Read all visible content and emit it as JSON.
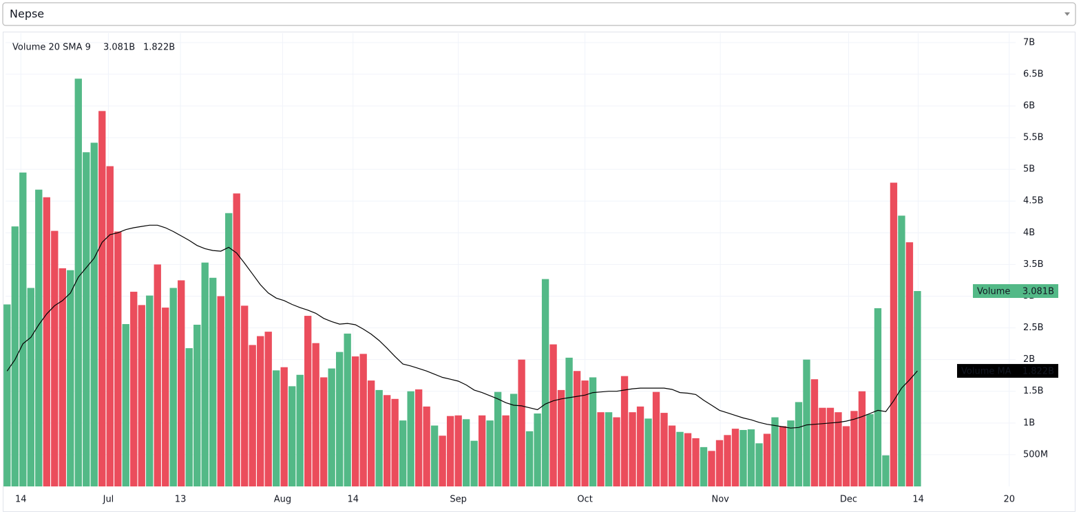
{
  "selector": {
    "value": "Nepse"
  },
  "chart_data": {
    "type": "bar",
    "legend_title": "Volume 20 SMA 9",
    "xlim": [
      -0.2,
      127.4
    ],
    "xticks": [
      {
        "value": 1.74,
        "label": "14"
      },
      {
        "value": 12.8,
        "label": "Jul"
      },
      {
        "value": 21.9,
        "label": "13"
      },
      {
        "value": 34.8,
        "label": "Aug"
      },
      {
        "value": 43.7,
        "label": "14"
      },
      {
        "value": 57,
        "label": "Sep"
      },
      {
        "value": 73,
        "label": "Oct"
      },
      {
        "value": 90.1,
        "label": "Nov"
      },
      {
        "value": 106.3,
        "label": "Dec"
      },
      {
        "value": 115.1,
        "label": "14"
      },
      {
        "value": 126.6,
        "label": "20"
      }
    ],
    "ylim": [
      0,
      7.15
    ],
    "yticks": [
      {
        "value": 0.5,
        "label": "500M"
      },
      {
        "value": 1,
        "label": "1B"
      },
      {
        "value": 1.5,
        "label": "1.5B"
      },
      {
        "value": 2,
        "label": "2B"
      },
      {
        "value": 2.5,
        "label": "2.5B"
      },
      {
        "value": 3,
        "label": "3B"
      },
      {
        "value": 3.5,
        "label": "3.5B"
      },
      {
        "value": 4,
        "label": "4B"
      },
      {
        "value": 4.5,
        "label": "4.5B"
      },
      {
        "value": 5,
        "label": "5B"
      },
      {
        "value": 5.5,
        "label": "5.5B"
      },
      {
        "value": 6,
        "label": "6B"
      },
      {
        "value": 6.5,
        "label": "6.5B"
      },
      {
        "value": 7,
        "label": "7B"
      }
    ],
    "grid": true,
    "series": [
      {
        "name": "Volume",
        "color": "#53b987",
        "value_label": "3.081B",
        "values": [
          2.87,
          4.1,
          4.95,
          3.13,
          4.68,
          4.56,
          4.03,
          3.44,
          3.41,
          6.43,
          5.27,
          5.42,
          5.92,
          5.05,
          4.02,
          2.56,
          3.07,
          2.86,
          3.01,
          3.5,
          2.82,
          3.13,
          3.25,
          2.18,
          2.55,
          3.53,
          3.29,
          3.0,
          4.31,
          4.62,
          2.85,
          2.23,
          2.37,
          2.44,
          1.83,
          1.88,
          1.58,
          1.76,
          2.69,
          2.26,
          1.72,
          1.86,
          2.12,
          2.41,
          2.05,
          2.09,
          1.67,
          1.52,
          1.44,
          1.38,
          1.04,
          1.5,
          1.53,
          1.26,
          0.96,
          0.8,
          1.11,
          1.12,
          1.06,
          0.72,
          1.12,
          1.04,
          1.49,
          1.12,
          1.46,
          2.0,
          0.87,
          1.15,
          3.27,
          2.24,
          1.52,
          2.03,
          1.82,
          1.67,
          1.72,
          1.17,
          1.17,
          1.09,
          1.74,
          1.17,
          1.26,
          1.07,
          1.49,
          1.16,
          0.96,
          0.86,
          0.84,
          0.76,
          0.62,
          0.56,
          0.73,
          0.81,
          0.91,
          0.89,
          0.9,
          0.68,
          0.83,
          1.09,
          0.95,
          1.04,
          1.33,
          2.0,
          1.69,
          1.24,
          1.24,
          1.17,
          0.95,
          1.19,
          1.5,
          1.14,
          2.81,
          0.49,
          4.79,
          4.27,
          3.85,
          3.081
        ],
        "colors": [
          "#53b987",
          "#53b987",
          "#53b987",
          "#53b987",
          "#53b987",
          "#eb4d5c",
          "#eb4d5c",
          "#eb4d5c",
          "#53b987",
          "#53b987",
          "#53b987",
          "#53b987",
          "#eb4d5c",
          "#eb4d5c",
          "#eb4d5c",
          "#53b987",
          "#eb4d5c",
          "#eb4d5c",
          "#53b987",
          "#eb4d5c",
          "#eb4d5c",
          "#53b987",
          "#eb4d5c",
          "#53b987",
          "#53b987",
          "#53b987",
          "#53b987",
          "#eb4d5c",
          "#53b987",
          "#eb4d5c",
          "#eb4d5c",
          "#eb4d5c",
          "#eb4d5c",
          "#eb4d5c",
          "#53b987",
          "#eb4d5c",
          "#53b987",
          "#53b987",
          "#eb4d5c",
          "#eb4d5c",
          "#eb4d5c",
          "#53b987",
          "#53b987",
          "#53b987",
          "#eb4d5c",
          "#eb4d5c",
          "#eb4d5c",
          "#53b987",
          "#eb4d5c",
          "#eb4d5c",
          "#53b987",
          "#53b987",
          "#eb4d5c",
          "#eb4d5c",
          "#53b987",
          "#eb4d5c",
          "#eb4d5c",
          "#eb4d5c",
          "#53b987",
          "#53b987",
          "#eb4d5c",
          "#53b987",
          "#53b987",
          "#eb4d5c",
          "#53b987",
          "#eb4d5c",
          "#53b987",
          "#53b987",
          "#53b987",
          "#eb4d5c",
          "#eb4d5c",
          "#53b987",
          "#eb4d5c",
          "#eb4d5c",
          "#53b987",
          "#eb4d5c",
          "#53b987",
          "#eb4d5c",
          "#eb4d5c",
          "#eb4d5c",
          "#eb4d5c",
          "#53b987",
          "#eb4d5c",
          "#eb4d5c",
          "#eb4d5c",
          "#53b987",
          "#eb4d5c",
          "#eb4d5c",
          "#53b987",
          "#eb4d5c",
          "#eb4d5c",
          "#eb4d5c",
          "#eb4d5c",
          "#53b987",
          "#53b987",
          "#53b987",
          "#eb4d5c",
          "#53b987",
          "#eb4d5c",
          "#53b987",
          "#53b987",
          "#53b987",
          "#eb4d5c",
          "#eb4d5c",
          "#eb4d5c",
          "#eb4d5c",
          "#eb4d5c",
          "#eb4d5c",
          "#eb4d5c",
          "#53b987",
          "#53b987",
          "#53b987",
          "#eb4d5c",
          "#53b987",
          "#eb4d5c",
          "#53b987"
        ]
      },
      {
        "name": "Volume MA",
        "color": "#000000",
        "value_label": "1.822B",
        "values": [
          1.82,
          2.0,
          2.25,
          2.35,
          2.55,
          2.72,
          2.85,
          2.93,
          3.05,
          3.3,
          3.45,
          3.6,
          3.85,
          3.97,
          4.0,
          4.05,
          4.08,
          4.1,
          4.12,
          4.12,
          4.08,
          4.02,
          3.95,
          3.88,
          3.8,
          3.75,
          3.72,
          3.71,
          3.77,
          3.68,
          3.52,
          3.35,
          3.18,
          3.05,
          2.97,
          2.93,
          2.87,
          2.82,
          2.78,
          2.73,
          2.65,
          2.6,
          2.56,
          2.57,
          2.55,
          2.48,
          2.4,
          2.3,
          2.18,
          2.05,
          1.93,
          1.9,
          1.86,
          1.82,
          1.77,
          1.72,
          1.69,
          1.66,
          1.6,
          1.52,
          1.48,
          1.43,
          1.38,
          1.32,
          1.28,
          1.27,
          1.24,
          1.21,
          1.3,
          1.35,
          1.38,
          1.4,
          1.42,
          1.44,
          1.48,
          1.49,
          1.5,
          1.5,
          1.52,
          1.54,
          1.55,
          1.55,
          1.55,
          1.55,
          1.53,
          1.48,
          1.47,
          1.45,
          1.36,
          1.28,
          1.2,
          1.16,
          1.12,
          1.08,
          1.05,
          1.01,
          0.98,
          0.96,
          0.94,
          0.92,
          0.93,
          0.97,
          0.98,
          0.99,
          1.0,
          1.01,
          1.03,
          1.06,
          1.1,
          1.15,
          1.2,
          1.18,
          1.35,
          1.55,
          1.68,
          1.822
        ]
      }
    ]
  }
}
